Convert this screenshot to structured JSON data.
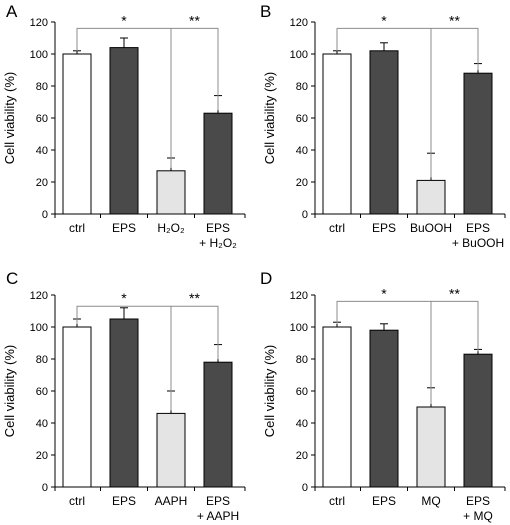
{
  "colors": {
    "control": "#ffffff",
    "eps": "#4a4a4a",
    "stress": "#e4e4e4",
    "outline": "#000000",
    "bracket": "#8c8c8c"
  },
  "chart_data": [
    {
      "panel": "A",
      "type": "bar",
      "ylabel": "Cell viability  (%)",
      "ylim": [
        0,
        120
      ],
      "yticks": [
        0,
        20,
        40,
        60,
        80,
        100,
        120
      ],
      "categories": [
        [
          "ctrl"
        ],
        [
          "EPS"
        ],
        [
          "H₂O₂"
        ],
        [
          "EPS",
          "+ H₂O₂"
        ]
      ],
      "values": [
        100,
        104,
        27,
        63
      ],
      "errors": [
        2,
        6,
        8,
        11
      ],
      "fills": [
        "control",
        "eps",
        "stress",
        "eps"
      ],
      "significance": [
        {
          "from": 0,
          "to": 2,
          "label": "*",
          "height": 116
        },
        {
          "from": 2,
          "to": 3,
          "label": "**",
          "height": 116
        }
      ]
    },
    {
      "panel": "B",
      "type": "bar",
      "ylabel": "Cell viability  (%)",
      "ylim": [
        0,
        120
      ],
      "yticks": [
        0,
        20,
        40,
        60,
        80,
        100,
        120
      ],
      "categories": [
        [
          "ctrl"
        ],
        [
          "EPS"
        ],
        [
          "BuOOH"
        ],
        [
          "EPS",
          "+ BuOOH"
        ]
      ],
      "values": [
        100,
        102,
        21,
        88
      ],
      "errors": [
        2,
        5,
        17,
        6
      ],
      "fills": [
        "control",
        "eps",
        "stress",
        "eps"
      ],
      "significance": [
        {
          "from": 0,
          "to": 2,
          "label": "*",
          "height": 116
        },
        {
          "from": 2,
          "to": 3,
          "label": "**",
          "height": 116
        }
      ]
    },
    {
      "panel": "C",
      "type": "bar",
      "ylabel": "Cell viability  (%)",
      "ylim": [
        0,
        120
      ],
      "yticks": [
        0,
        20,
        40,
        60,
        80,
        100,
        120
      ],
      "categories": [
        [
          "ctrl"
        ],
        [
          "EPS"
        ],
        [
          "AAPH"
        ],
        [
          "EPS",
          "+ AAPH"
        ]
      ],
      "values": [
        100,
        105,
        46,
        78
      ],
      "errors": [
        5,
        7,
        14,
        11
      ],
      "fills": [
        "control",
        "eps",
        "stress",
        "eps"
      ],
      "significance": [
        {
          "from": 0,
          "to": 2,
          "label": "*",
          "height": 113
        },
        {
          "from": 2,
          "to": 3,
          "label": "**",
          "height": 113
        }
      ]
    },
    {
      "panel": "D",
      "type": "bar",
      "ylabel": "Cell viability  (%)",
      "ylim": [
        0,
        120
      ],
      "yticks": [
        0,
        20,
        40,
        60,
        80,
        100,
        120
      ],
      "categories": [
        [
          "ctrl"
        ],
        [
          "EPS"
        ],
        [
          "MQ"
        ],
        [
          "EPS",
          "+ MQ"
        ]
      ],
      "values": [
        100,
        98,
        50,
        83
      ],
      "errors": [
        3,
        4,
        12,
        3
      ],
      "fills": [
        "control",
        "eps",
        "stress",
        "eps"
      ],
      "significance": [
        {
          "from": 0,
          "to": 2,
          "label": "*",
          "height": 116
        },
        {
          "from": 2,
          "to": 3,
          "label": "**",
          "height": 116
        }
      ]
    }
  ]
}
